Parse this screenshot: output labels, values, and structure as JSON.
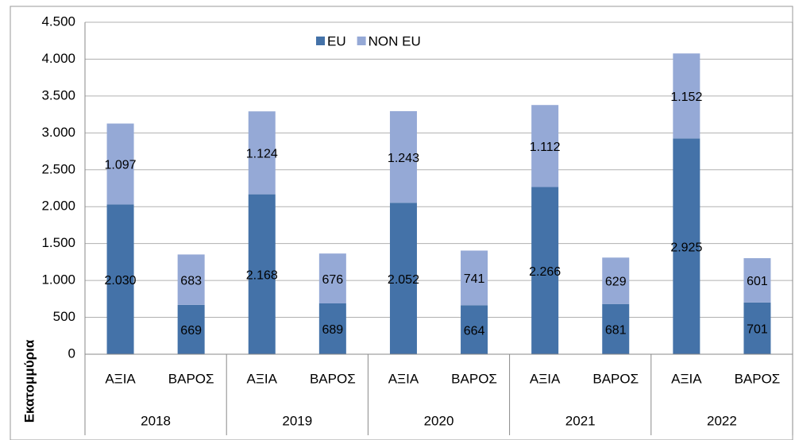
{
  "chart_data": {
    "type": "stacked_bar",
    "y_axis_label": "Εκατομμύρια",
    "categories": [
      "ΑΞΙΑ",
      "ΒΑΡΟΣ",
      "ΑΞΙΑ",
      "ΒΑΡΟΣ",
      "ΑΞΙΑ",
      "ΒΑΡΟΣ",
      "ΑΞΙΑ",
      "ΒΑΡΟΣ",
      "ΑΞΙΑ",
      "ΒΑΡΟΣ"
    ],
    "groups": [
      "2018",
      "2019",
      "2020",
      "2021",
      "2022"
    ],
    "series": [
      {
        "name": "EU",
        "color": "#4472a8",
        "values": [
          2030,
          669,
          2168,
          689,
          2052,
          664,
          2266,
          681,
          2925,
          701
        ],
        "value_labels": [
          "2.030",
          "669",
          "2.168",
          "689",
          "2.052",
          "664",
          "2.266",
          "681",
          "2.925",
          "701"
        ]
      },
      {
        "name": "NON EU",
        "color": "#95a9d6",
        "values": [
          1097,
          683,
          1124,
          676,
          1243,
          741,
          1112,
          629,
          1152,
          601
        ],
        "value_labels": [
          "1.097",
          "683",
          "1.124",
          "676",
          "1.243",
          "741",
          "1.112",
          "629",
          "1.152",
          "601"
        ]
      }
    ],
    "ylim": [
      0,
      4500
    ],
    "yticks": [
      0,
      500,
      {
        "value": 1000,
        "label": "1.000"
      },
      {
        "value": 1500,
        "label": "1.500"
      },
      {
        "value": 2000,
        "label": "2.000"
      },
      {
        "value": 2500,
        "label": "2.500"
      },
      {
        "value": 3000,
        "label": "3.000"
      },
      {
        "value": 3500,
        "label": "3.500"
      },
      {
        "value": 4000,
        "label": "4.000"
      },
      {
        "value": 4500,
        "label": "4.500"
      }
    ],
    "grid": true,
    "legend": "top"
  }
}
